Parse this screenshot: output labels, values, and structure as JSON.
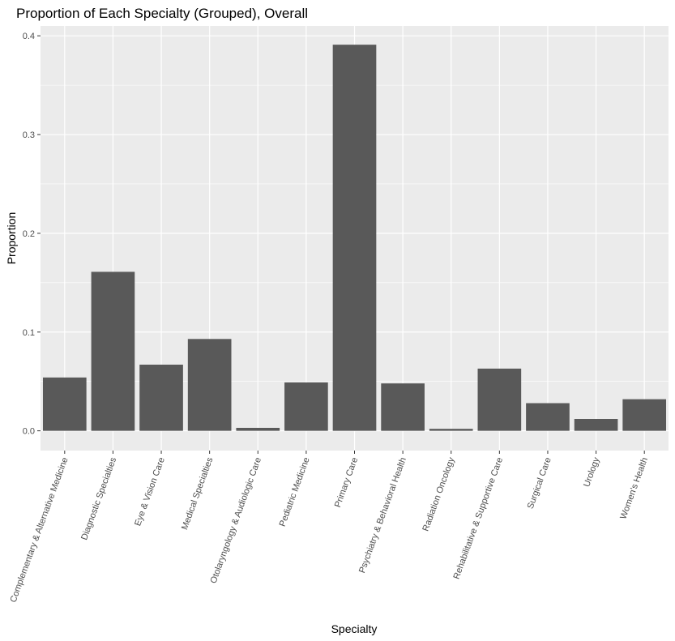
{
  "chart_data": {
    "type": "bar",
    "title": "Proportion of Each Specialty (Grouped), Overall",
    "xlabel": "Specialty",
    "ylabel": "Proportion",
    "categories": [
      "Complementary & Alternative Medicine",
      "Diagnostic Specialties",
      "Eye & Vision Care",
      "Medical Specialties",
      "Otolaryngology & Audiologic Care",
      "Pediatric Medicine",
      "Primary Care",
      "Psychiatry & Behavioral Health",
      "Radiation Oncology",
      "Rehabilitative & Supportive Care",
      "Surgical Care",
      "Urology",
      "Women's Health"
    ],
    "values": [
      0.054,
      0.161,
      0.067,
      0.093,
      0.003,
      0.049,
      0.391,
      0.048,
      0.002,
      0.063,
      0.028,
      0.012,
      0.032
    ],
    "ylim": [
      -0.02,
      0.41
    ],
    "yticks": [
      0.0,
      0.1,
      0.2,
      0.3,
      0.4
    ],
    "ytick_labels": [
      "0.0",
      "0.1",
      "0.2",
      "0.3",
      "0.4"
    ],
    "grid": true,
    "colors": {
      "bar": "#595959",
      "panel": "#ebebeb",
      "grid": "#ffffff"
    }
  }
}
